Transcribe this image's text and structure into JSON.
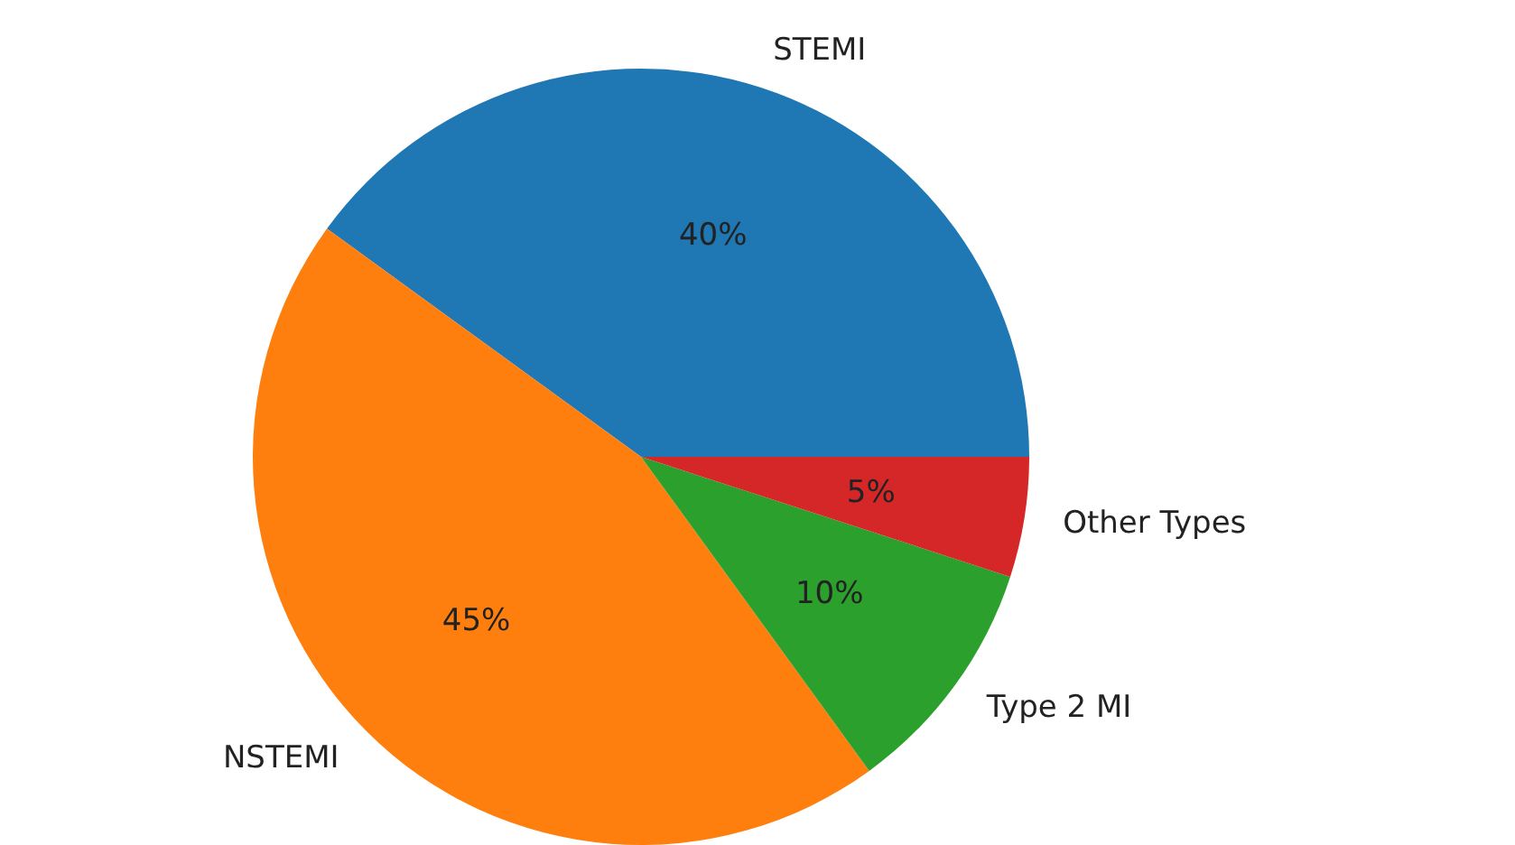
{
  "chart_data": {
    "type": "pie",
    "categories": [
      "STEMI",
      "NSTEMI",
      "Type 2 MI",
      "Other Types"
    ],
    "values": [
      40,
      45,
      10,
      5
    ],
    "colors": [
      "#1f77b4",
      "#ff7f0e",
      "#2ca02c",
      "#d62728"
    ],
    "value_labels": [
      "40%",
      "45%",
      "10%",
      "5%"
    ],
    "legend": false
  }
}
